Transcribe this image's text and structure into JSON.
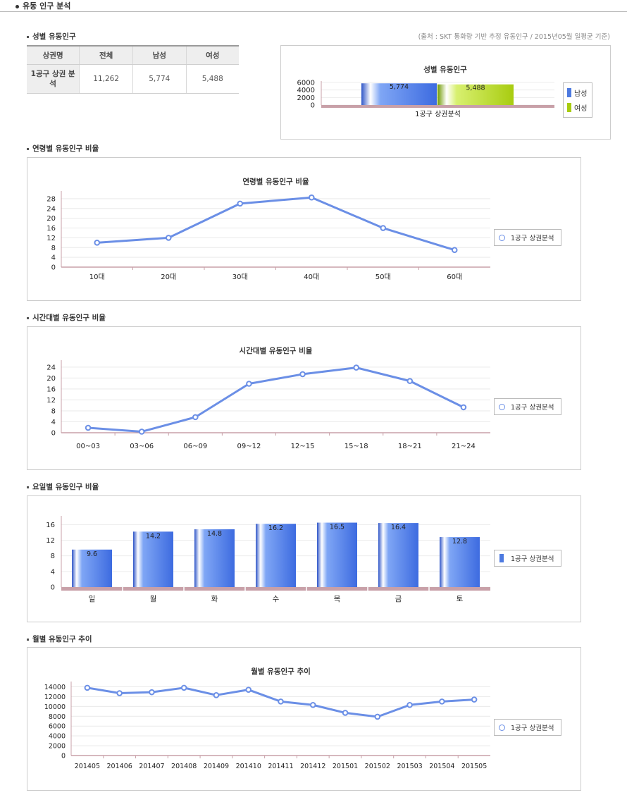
{
  "page_title": "유동 인구 분석",
  "source_note": "(출처 : SKT 통화량 기반 추정 유동인구 / 2015년05월 일평균 기준)",
  "colors": {
    "line": "#6b8fe6",
    "bar": "#4d7ae0",
    "bar_female": "#a8cc10",
    "axis": "#c8a0a8"
  },
  "gender": {
    "section_title": "성별 유동인구",
    "table": {
      "headers": [
        "상권명",
        "전체",
        "남성",
        "여성"
      ],
      "row": {
        "name": "1공구 상권 분석",
        "total": "11,262",
        "male": "5,774",
        "female": "5,488"
      }
    },
    "legend": [
      "남성",
      "여성"
    ]
  },
  "age": {
    "section_title": "연령별 유동인구 비율",
    "legend": "1공구 상권분석"
  },
  "time": {
    "section_title": "시간대별 유동인구 비율",
    "legend": "1공구 상권분석"
  },
  "weekday": {
    "section_title": "요일별 유동인구 비율",
    "legend": "1공구 상권분석"
  },
  "monthly": {
    "section_title": "월별 유동인구 추이",
    "legend": "1공구 상권분석"
  },
  "chart_data": [
    {
      "type": "bar",
      "title": "성별 유동인구",
      "categories": [
        "1공구 상권분석"
      ],
      "series": [
        {
          "name": "남성",
          "values": [
            5774
          ]
        },
        {
          "name": "여성",
          "values": [
            5488
          ]
        }
      ],
      "data_labels": [
        "5,774",
        "5,488"
      ],
      "yticks": [
        0,
        2000,
        4000,
        6000
      ],
      "ylim": [
        0,
        6000
      ],
      "legend": "right"
    },
    {
      "type": "line",
      "title": "연령별 유동인구 비율",
      "categories": [
        "10대",
        "20대",
        "30대",
        "40대",
        "50대",
        "60대"
      ],
      "series": [
        {
          "name": "1공구 상권분석",
          "values": [
            10,
            12,
            26,
            28.5,
            16,
            7
          ]
        }
      ],
      "yticks": [
        0,
        4,
        8,
        12,
        16,
        20,
        24,
        28
      ],
      "ylim": [
        0,
        30
      ],
      "legend": "right"
    },
    {
      "type": "line",
      "title": "시간대별 유동인구 비율",
      "categories": [
        "00~03",
        "03~06",
        "06~09",
        "09~12",
        "12~15",
        "15~18",
        "18~21",
        "21~24"
      ],
      "series": [
        {
          "name": "1공구 상권분석",
          "values": [
            1.8,
            0.4,
            5.7,
            17.9,
            21.4,
            23.8,
            18.9,
            9.3
          ]
        }
      ],
      "yticks": [
        0,
        4,
        8,
        12,
        16,
        20,
        24
      ],
      "ylim": [
        0,
        25.5
      ],
      "legend": "right"
    },
    {
      "type": "bar",
      "title": "",
      "categories": [
        "일",
        "월",
        "화",
        "수",
        "목",
        "금",
        "토"
      ],
      "series": [
        {
          "name": "1공구 상권분석",
          "values": [
            9.6,
            14.2,
            14.8,
            16.2,
            16.5,
            16.4,
            12.8
          ]
        }
      ],
      "data_labels": [
        "9.6",
        "14.2",
        "14.8",
        "16.2",
        "16.5",
        "16.4",
        "12.8"
      ],
      "yticks": [
        0,
        4,
        8,
        12,
        16
      ],
      "ylim": [
        0,
        17.5
      ],
      "legend": "right"
    },
    {
      "type": "line",
      "title": "월별 유동인구 추이",
      "categories": [
        "201405",
        "201406",
        "201407",
        "201408",
        "201409",
        "201410",
        "201411",
        "201412",
        "201501",
        "201502",
        "201503",
        "201504",
        "201505"
      ],
      "series": [
        {
          "name": "1공구 상권분석",
          "values": [
            13800,
            12700,
            12900,
            13800,
            12300,
            13400,
            11000,
            10300,
            8700,
            7900,
            10300,
            11000,
            11400
          ]
        }
      ],
      "yticks": [
        0,
        2000,
        4000,
        6000,
        8000,
        10000,
        12000,
        14000
      ],
      "ylim": [
        0,
        14500
      ],
      "legend": "right"
    }
  ]
}
